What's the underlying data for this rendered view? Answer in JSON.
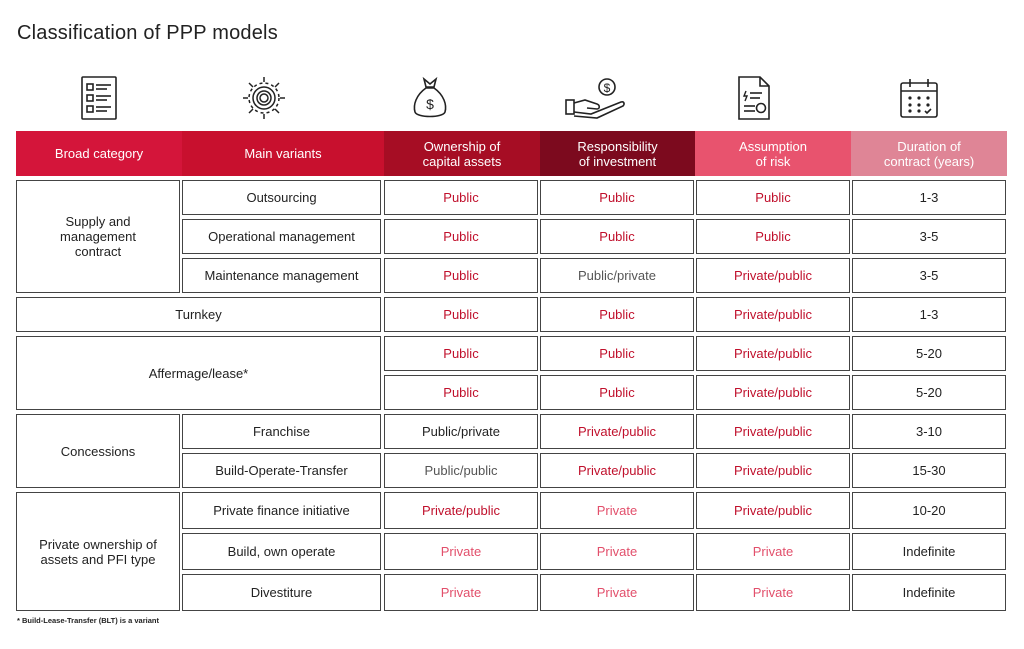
{
  "title": "Classification of PPP models",
  "headers": [
    {
      "label": "Broad category",
      "color": "#d4153a"
    },
    {
      "label": "Main variants",
      "color": "#c8102e"
    },
    {
      "label": "Ownership of\ncapital assets",
      "color": "#a60d24"
    },
    {
      "label": "Responsibility\nof investment",
      "color": "#7c0a1e"
    },
    {
      "label": "Assumption\nof risk",
      "color": "#e8536e"
    },
    {
      "label": "Duration of\ncontract (years)",
      "color": "#df8596"
    }
  ],
  "icons": [
    "checklist-icon",
    "gear-icon",
    "money-bag-icon",
    "hand-coin-icon",
    "document-icon",
    "calendar-icon"
  ],
  "groups": [
    {
      "category": "Supply and\nmanagement\ncontract"
    },
    {
      "category": "Turnkey"
    },
    {
      "category": "Affermage/lease*"
    },
    {
      "category": "Concessions"
    },
    {
      "category": "Private ownership of\nassets and PFI type"
    }
  ],
  "rows": [
    {
      "variant": "Outsourcing",
      "ownership": "Public",
      "investment": "Public",
      "risk": "Public",
      "duration": "1-3"
    },
    {
      "variant": "Operational management",
      "ownership": "Public",
      "investment": "Public",
      "risk": "Public",
      "duration": "3-5"
    },
    {
      "variant": "Maintenance management",
      "ownership": "Public",
      "investment": "Public/private",
      "risk": "Private/public",
      "duration": "3-5"
    },
    {
      "variant": "",
      "ownership": "Public",
      "investment": "Public",
      "risk": "Private/public",
      "duration": "1-3"
    },
    {
      "variant": "",
      "ownership": "Public",
      "investment": "Public",
      "risk": "Private/public",
      "duration": "5-20"
    },
    {
      "variant": "",
      "ownership": "Public",
      "investment": "Public",
      "risk": "Private/public",
      "duration": "5-20"
    },
    {
      "variant": "Franchise",
      "ownership": "Public/private",
      "investment": "Private/public",
      "risk": "Private/public",
      "duration": "3-10"
    },
    {
      "variant": "Build-Operate-Transfer",
      "ownership": "Public/public",
      "investment": "Private/public",
      "risk": "Private/public",
      "duration": "15-30"
    },
    {
      "variant": "Private finance initiative",
      "ownership": "Private/public",
      "investment": "Private",
      "risk": "Private/public",
      "duration": "10-20"
    },
    {
      "variant": "Build, own operate",
      "ownership": "Private",
      "investment": "Private",
      "risk": "Private",
      "duration": "Indefinite"
    },
    {
      "variant": "Divestiture",
      "ownership": "Private",
      "investment": "Private",
      "risk": "Private",
      "duration": "Indefinite"
    }
  ],
  "footnote": "* Build-Lease-Transfer (BLT) is a variant"
}
